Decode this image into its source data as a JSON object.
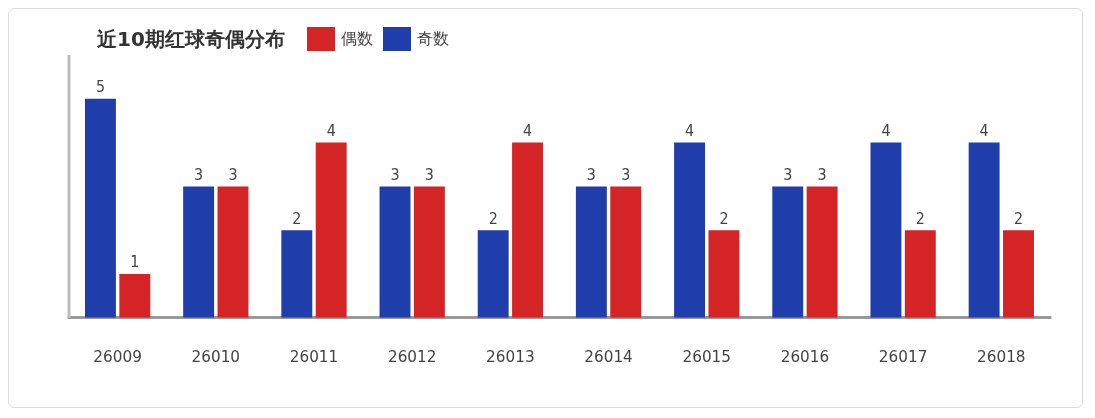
{
  "chart_data": {
    "type": "bar",
    "title": "近10期红球奇偶分布",
    "categories": [
      "26009",
      "26010",
      "26011",
      "26012",
      "26013",
      "26014",
      "26015",
      "26016",
      "26017",
      "26018"
    ],
    "series": [
      {
        "name": "奇数",
        "color": "#1f3eab",
        "values": [
          5,
          3,
          2,
          3,
          2,
          3,
          4,
          3,
          4,
          4
        ]
      },
      {
        "name": "偶数",
        "color": "#d42426",
        "values": [
          1,
          3,
          4,
          3,
          4,
          3,
          2,
          3,
          2,
          2
        ]
      }
    ],
    "data_labels": true,
    "legend": "top",
    "grid": false
  }
}
